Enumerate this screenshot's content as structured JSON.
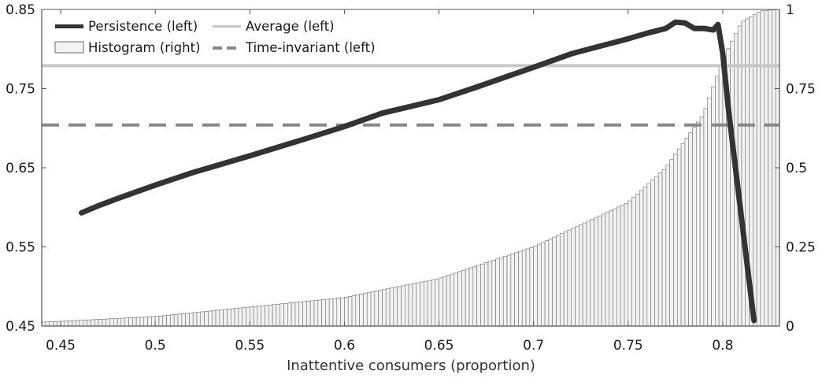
{
  "chart_data": {
    "type": "line",
    "xlabel": "Inattentive consumers (proportion)",
    "xlim": [
      0.44,
      0.83
    ],
    "x_ticks": [
      0.45,
      0.5,
      0.55,
      0.6,
      0.65,
      0.7,
      0.75,
      0.8
    ],
    "x_tick_labels": [
      "0.45",
      "0.5",
      "0.55",
      "0.6",
      "0.65",
      "0.7",
      "0.75",
      "0.8"
    ],
    "y_left": {
      "lim": [
        0.45,
        0.85
      ],
      "ticks": [
        0.45,
        0.55,
        0.65,
        0.75,
        0.85
      ],
      "tick_labels": [
        "0.45",
        "0.55",
        "0.65",
        "0.75",
        "0.85"
      ]
    },
    "y_right": {
      "lim": [
        0,
        1
      ],
      "ticks": [
        0,
        0.25,
        0.5,
        0.75,
        1
      ],
      "tick_labels": [
        "0",
        "0.25",
        "0.5",
        "0.75",
        "1"
      ]
    },
    "legend_position": "top-left",
    "grid": false,
    "series": [
      {
        "name": "Persistence (left)",
        "axis": "left",
        "style": "solid-thick",
        "color": "#333333",
        "x": [
          0.461,
          0.47,
          0.48,
          0.5,
          0.52,
          0.55,
          0.58,
          0.6,
          0.62,
          0.65,
          0.67,
          0.7,
          0.72,
          0.75,
          0.76,
          0.77,
          0.775,
          0.78,
          0.785,
          0.79,
          0.795,
          0.7975,
          0.8,
          0.803,
          0.807,
          0.812,
          0.8165
        ],
        "y": [
          0.593,
          0.602,
          0.611,
          0.628,
          0.644,
          0.665,
          0.687,
          0.702,
          0.719,
          0.736,
          0.752,
          0.777,
          0.794,
          0.813,
          0.82,
          0.826,
          0.834,
          0.833,
          0.826,
          0.826,
          0.824,
          0.831,
          0.795,
          0.725,
          0.645,
          0.545,
          0.457
        ]
      },
      {
        "name": "Average (left)",
        "axis": "left",
        "style": "solid-thin",
        "color": "#c8c8c8",
        "value": 0.779
      },
      {
        "name": "Time-invariant (left)",
        "axis": "left",
        "style": "dashed",
        "color": "#888888",
        "value": 0.704
      },
      {
        "name": "Histogram (right)",
        "axis": "right",
        "style": "bar",
        "color": "#f2f2f2",
        "bin_start": 0.44,
        "bin_width": 0.002,
        "bin_count": 195,
        "x_anchor": [
          0.44,
          0.5,
          0.55,
          0.6,
          0.65,
          0.7,
          0.75,
          0.77,
          0.79,
          0.8,
          0.805,
          0.81,
          0.82,
          0.83
        ],
        "y_anchor": [
          0.012,
          0.03,
          0.06,
          0.09,
          0.15,
          0.25,
          0.39,
          0.5,
          0.67,
          0.84,
          0.9,
          0.96,
          0.995,
          1.0
        ]
      }
    ]
  },
  "colors": {
    "persistence": "#333333",
    "average": "#c8c8c8",
    "time_invariant": "#888888",
    "histogram_fill": "#f2f2f2",
    "histogram_edge": "#6e6e6e",
    "axis": "#555555"
  }
}
